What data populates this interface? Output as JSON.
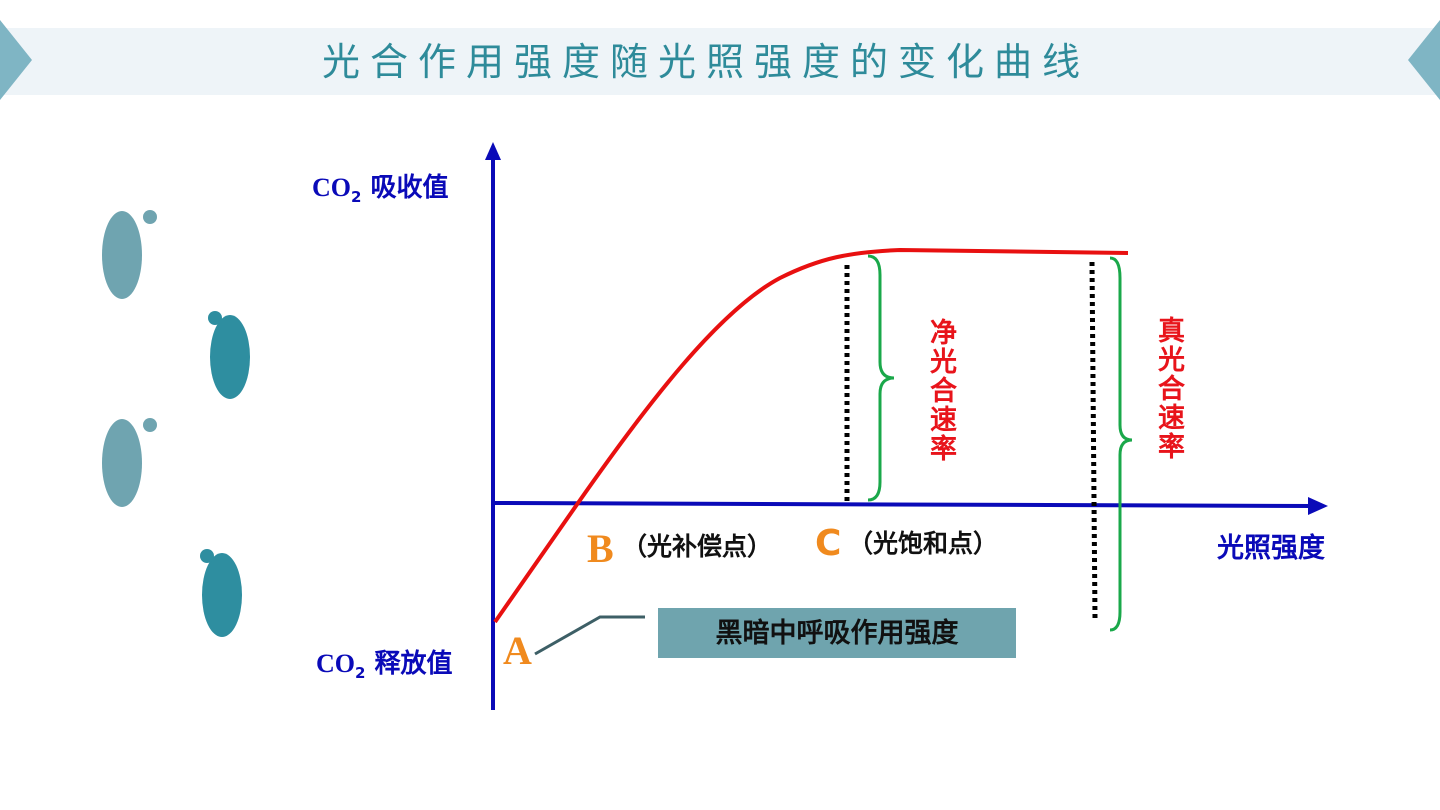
{
  "title": "光合作用强度随光照强度的变化曲线",
  "y_axis": {
    "top_label": {
      "main": "CO",
      "sub": "2",
      "rest": " 吸收值"
    },
    "bottom_label": {
      "main": "CO",
      "sub": "2",
      "rest": " 释放值"
    }
  },
  "x_axis": {
    "label": "光照强度"
  },
  "points": {
    "A": "A",
    "B": {
      "letter": "B",
      "note": "（光补偿点）"
    },
    "C": {
      "letter": "C",
      "note": "（光饱和点）"
    }
  },
  "box_label": "黑暗中呼吸作用强度",
  "brace_labels": {
    "net": "净光合速率",
    "gross": "真光合速率"
  }
}
